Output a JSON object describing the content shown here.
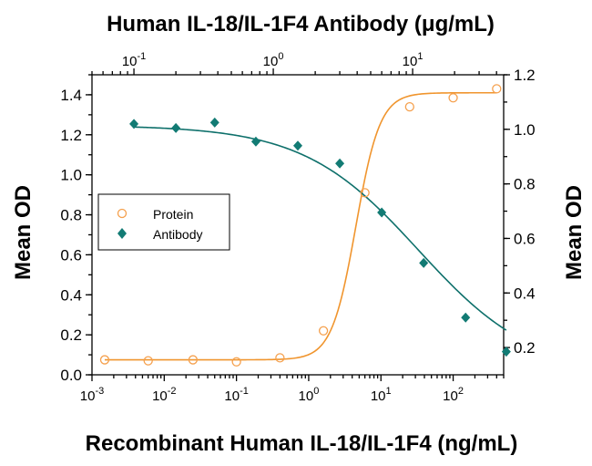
{
  "chart_data": {
    "type": "scatter",
    "title": "Human IL-18/IL-1F4 Antibody (μg/mL)",
    "xlabel": "Recombinant Human IL-18/IL-1F4 (ng/mL)",
    "ylabel": "Mean OD",
    "y2label": "Mean OD",
    "x_scale": "log",
    "x_range": [
      0.001,
      500
    ],
    "x_ticks": [
      {
        "value": 0.001,
        "base": "10",
        "exp": "-3"
      },
      {
        "value": 0.01,
        "base": "10",
        "exp": "-2"
      },
      {
        "value": 0.1,
        "base": "10",
        "exp": "-1"
      },
      {
        "value": 1,
        "base": "10",
        "exp": "0"
      },
      {
        "value": 10,
        "base": "10",
        "exp": "1"
      },
      {
        "value": 100,
        "base": "10",
        "exp": "2"
      }
    ],
    "x2_scale": "log",
    "x2_range": [
      0.05,
      45
    ],
    "x2_ticks": [
      {
        "value": 0.1,
        "base": "10",
        "exp": "-1"
      },
      {
        "value": 1,
        "base": "10",
        "exp": "0"
      },
      {
        "value": 10,
        "base": "10",
        "exp": "1"
      }
    ],
    "ylim": [
      0.0,
      1.5
    ],
    "y_ticks": [
      "0.0",
      "0.2",
      "0.4",
      "0.6",
      "0.8",
      "1.0",
      "1.2",
      "1.4"
    ],
    "y2lim": [
      0.1,
      1.2
    ],
    "y2_ticks": [
      "0.2",
      "0.4",
      "0.6",
      "0.8",
      "1.0",
      "1.2"
    ],
    "grid": false,
    "legend_position": "middle-left",
    "series": [
      {
        "name": "Protein",
        "axis": "bottom-left",
        "marker": "open-circle",
        "color": "#f5a04d",
        "fit_color": "#f0952e",
        "x": [
          0.0015,
          0.006,
          0.025,
          0.1,
          0.4,
          1.6,
          6.0,
          25,
          100,
          400
        ],
        "y": [
          0.075,
          0.07,
          0.075,
          0.065,
          0.085,
          0.22,
          0.91,
          1.34,
          1.385,
          1.43
        ],
        "fit": {
          "bottom": 0.075,
          "top": 1.41,
          "ec50": 4.5,
          "hill": 2.6
        }
      },
      {
        "name": "Antibody",
        "axis": "top-right",
        "marker": "filled-diamond",
        "color": "#127b74",
        "fit_color": "#0e706b",
        "x": [
          0.1,
          0.2,
          0.38,
          0.75,
          1.5,
          3.0,
          6.0,
          12,
          24,
          47
        ],
        "y": [
          1.02,
          1.005,
          1.025,
          0.955,
          0.94,
          0.875,
          0.695,
          0.51,
          0.31,
          0.185
        ],
        "fit": {
          "bottom": 0.1,
          "top": 1.015,
          "ec50": 11,
          "hill": 1.05
        }
      }
    ]
  }
}
